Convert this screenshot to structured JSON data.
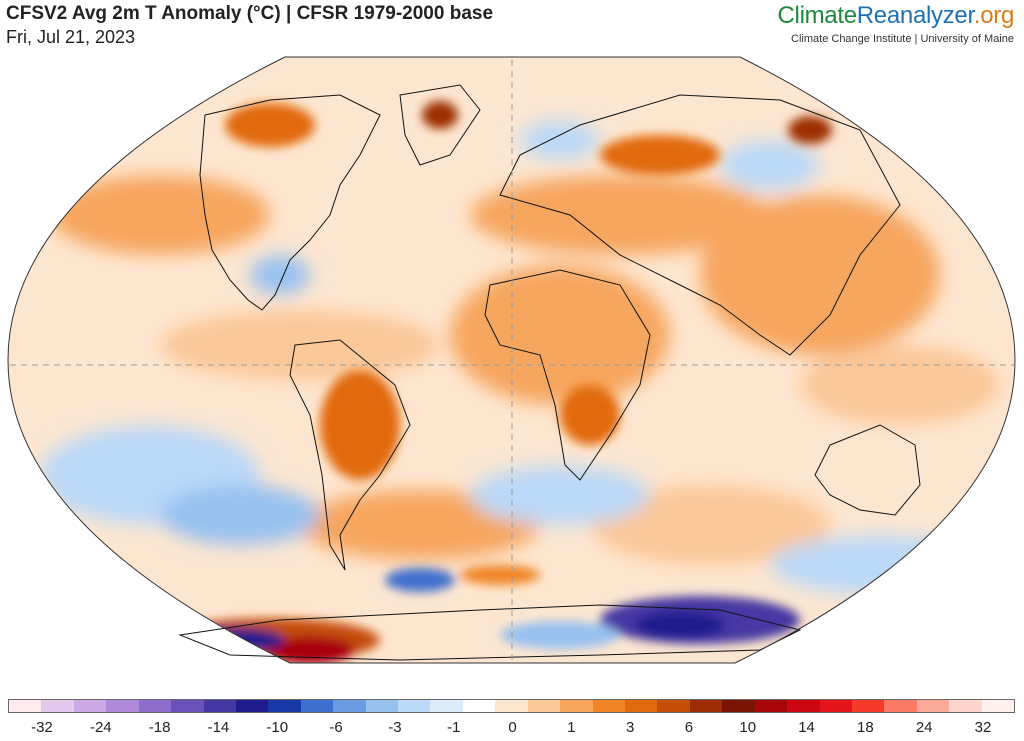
{
  "header": {
    "title": "CFSV2 Avg 2m T Anomaly (°C) | CFSR 1979-2000 base",
    "date": "Fri, Jul 21, 2023"
  },
  "brand": {
    "part1": "Climate",
    "part2": "Reanalyzer",
    "part3": ".org",
    "subtitle": "Climate Change Institute | University of Maine"
  },
  "legend": {
    "colors": [
      "#fde9ee",
      "#e6c8ec",
      "#cfa9e6",
      "#b08ad9",
      "#8e6ccc",
      "#6a52b8",
      "#4638a3",
      "#1f1c8e",
      "#1838a8",
      "#3f6fce",
      "#6b9be0",
      "#98c1f0",
      "#bcd9f7",
      "#dcecfb",
      "#ffffff",
      "#fde6d0",
      "#fbc89a",
      "#f7a65e",
      "#f08528",
      "#e26a0e",
      "#c54e08",
      "#9e2d05",
      "#7a1405",
      "#a8060b",
      "#cc0612",
      "#e5141c",
      "#f53a2a",
      "#fa7a66",
      "#fbaa9a",
      "#fdd5cc",
      "#fef0ec"
    ],
    "ticks": [
      "-32",
      "-24",
      "-18",
      "-14",
      "-10",
      "-6",
      "-3",
      "-1",
      "0",
      "1",
      "3",
      "6",
      "10",
      "14",
      "18",
      "24",
      "32"
    ]
  }
}
